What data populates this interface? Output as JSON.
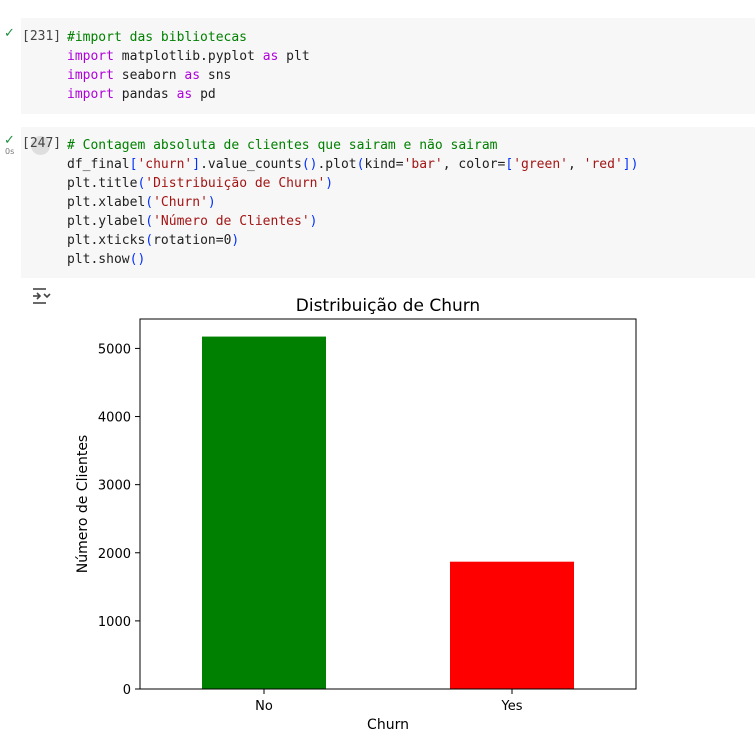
{
  "cells": [
    {
      "status_icon": "check-icon",
      "exec_count": "[231]",
      "lines": [
        [
          {
            "t": "#import das bibliotecas",
            "c": "cm"
          }
        ],
        [
          {
            "t": "import",
            "c": "kw"
          },
          {
            "t": " matplotlib.pyplot ",
            "c": ""
          },
          {
            "t": "as",
            "c": "kw"
          },
          {
            "t": " plt",
            "c": ""
          }
        ],
        [
          {
            "t": "import",
            "c": "kw"
          },
          {
            "t": " seaborn ",
            "c": ""
          },
          {
            "t": "as",
            "c": "kw"
          },
          {
            "t": " sns",
            "c": ""
          }
        ],
        [
          {
            "t": "import",
            "c": "kw"
          },
          {
            "t": " pandas ",
            "c": ""
          },
          {
            "t": "as",
            "c": "kw"
          },
          {
            "t": " pd",
            "c": ""
          }
        ]
      ]
    },
    {
      "status_icon": "check-icon",
      "exec_time": "0s",
      "exec_count": "[247]",
      "lines": [
        [
          {
            "t": "# Contagem absoluta de clientes que sairam e não sairam",
            "c": "cm"
          }
        ],
        [
          {
            "t": "df_final",
            "c": ""
          },
          {
            "t": "[",
            "c": "pn"
          },
          {
            "t": "'churn'",
            "c": "st"
          },
          {
            "t": "]",
            "c": "pn"
          },
          {
            "t": ".value_counts",
            "c": ""
          },
          {
            "t": "()",
            "c": "pn"
          },
          {
            "t": ".plot",
            "c": ""
          },
          {
            "t": "(",
            "c": "pn"
          },
          {
            "t": "kind=",
            "c": ""
          },
          {
            "t": "'bar'",
            "c": "st"
          },
          {
            "t": ", color=",
            "c": ""
          },
          {
            "t": "[",
            "c": "pn"
          },
          {
            "t": "'green'",
            "c": "st"
          },
          {
            "t": ", ",
            "c": ""
          },
          {
            "t": "'red'",
            "c": "st"
          },
          {
            "t": "]",
            "c": "pn"
          },
          {
            "t": ")",
            "c": "pn"
          }
        ],
        [
          {
            "t": "plt.title",
            "c": ""
          },
          {
            "t": "(",
            "c": "pn"
          },
          {
            "t": "'Distribuição de Churn'",
            "c": "st"
          },
          {
            "t": ")",
            "c": "pn"
          }
        ],
        [
          {
            "t": "plt.xlabel",
            "c": ""
          },
          {
            "t": "(",
            "c": "pn"
          },
          {
            "t": "'Churn'",
            "c": "st"
          },
          {
            "t": ")",
            "c": "pn"
          }
        ],
        [
          {
            "t": "plt.ylabel",
            "c": ""
          },
          {
            "t": "(",
            "c": "pn"
          },
          {
            "t": "'Número de Clientes'",
            "c": "st"
          },
          {
            "t": ")",
            "c": "pn"
          }
        ],
        [
          {
            "t": "plt.xticks",
            "c": ""
          },
          {
            "t": "(",
            "c": "pn"
          },
          {
            "t": "rotation=",
            "c": ""
          },
          {
            "t": "0",
            "c": ""
          },
          {
            "t": ")",
            "c": "pn"
          }
        ],
        [
          {
            "t": "plt.show",
            "c": ""
          },
          {
            "t": "()",
            "c": "pn"
          }
        ]
      ]
    }
  ],
  "colors": {
    "keyword": "#af00db",
    "comment": "#008000",
    "string": "#a31515",
    "bracket": "#0431fa",
    "cell_background": "#f7f7f7",
    "check": "#1e8e3e"
  },
  "output_icon": "output-toggle-icon",
  "chart_data": {
    "type": "bar",
    "title": "Distribuição de Churn",
    "xlabel": "Churn",
    "ylabel": "Número de Clientes",
    "categories": [
      "No",
      "Yes"
    ],
    "values": [
      5174,
      1869
    ],
    "colors": [
      "#008000",
      "#ff0000"
    ],
    "ylim": [
      0,
      5432
    ],
    "yticks": [
      0,
      1000,
      2000,
      3000,
      4000,
      5000
    ],
    "grid": false,
    "legend": false
  }
}
